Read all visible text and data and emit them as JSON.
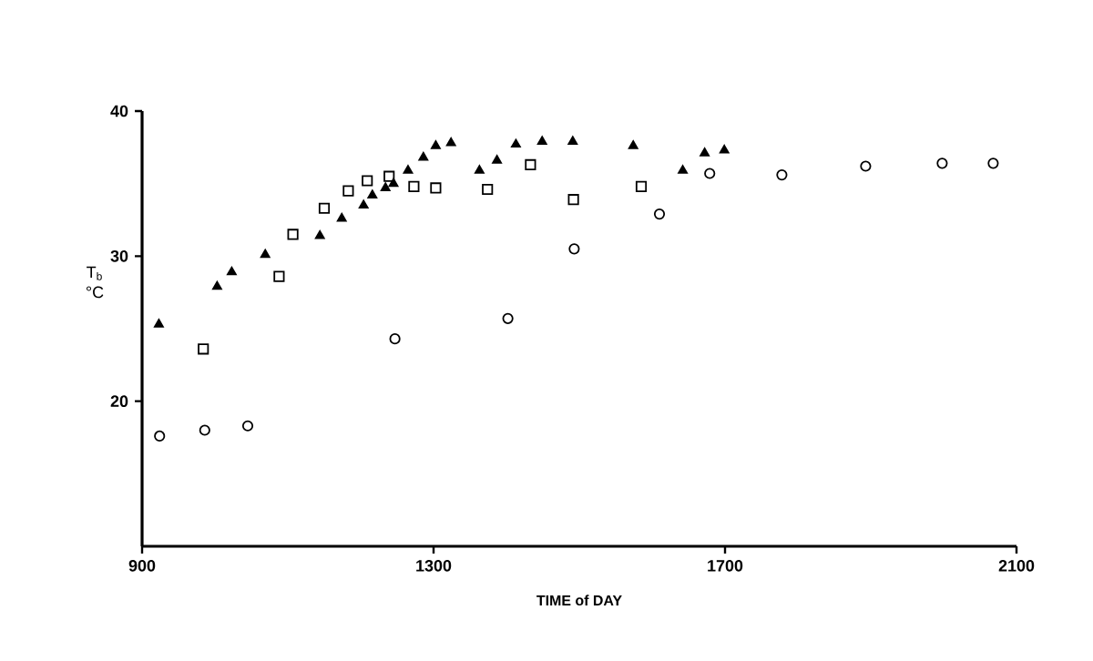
{
  "chart_data": {
    "type": "scatter",
    "xlabel": "TIME of DAY",
    "ylabel": "T$_{b}$ °C",
    "xlim": [
      900,
      2100
    ],
    "ylim": [
      10,
      40
    ],
    "xticks": [
      900,
      1300,
      1700,
      2100
    ],
    "yticks": [
      20,
      30,
      40
    ],
    "grid": false,
    "series": [
      {
        "color": "#000000",
        "marker": "triangle",
        "x": [
          923,
          1003,
          1023,
          1069,
          1144,
          1174,
          1204,
          1216,
          1234,
          1245,
          1265,
          1286,
          1303,
          1324,
          1363,
          1387,
          1413,
          1449,
          1491,
          1574,
          1642,
          1672,
          1699
        ],
        "values": [
          25.3,
          27.9,
          28.9,
          30.1,
          31.4,
          32.6,
          33.5,
          34.2,
          34.7,
          35.0,
          35.9,
          36.8,
          37.6,
          37.8,
          35.9,
          36.6,
          37.7,
          37.9,
          37.9,
          37.6,
          35.9,
          37.1,
          37.3
        ]
      },
      {
        "color": "#000000",
        "marker": "square",
        "x": [
          984,
          1088,
          1107,
          1150,
          1183,
          1209,
          1239,
          1273,
          1303,
          1374,
          1433,
          1492,
          1585
        ],
        "values": [
          23.6,
          28.6,
          31.5,
          33.3,
          34.5,
          35.2,
          35.5,
          34.8,
          34.7,
          34.6,
          36.3,
          33.9,
          34.8
        ]
      },
      {
        "color": "#000000",
        "marker": "circle",
        "x": [
          924,
          986,
          1045,
          1247,
          1402,
          1493,
          1610,
          1679,
          1778,
          1893,
          1998,
          2068
        ],
        "values": [
          17.6,
          18.0,
          18.3,
          24.3,
          25.7,
          30.5,
          32.9,
          35.7,
          35.6,
          36.2,
          36.4,
          36.4
        ]
      }
    ]
  }
}
